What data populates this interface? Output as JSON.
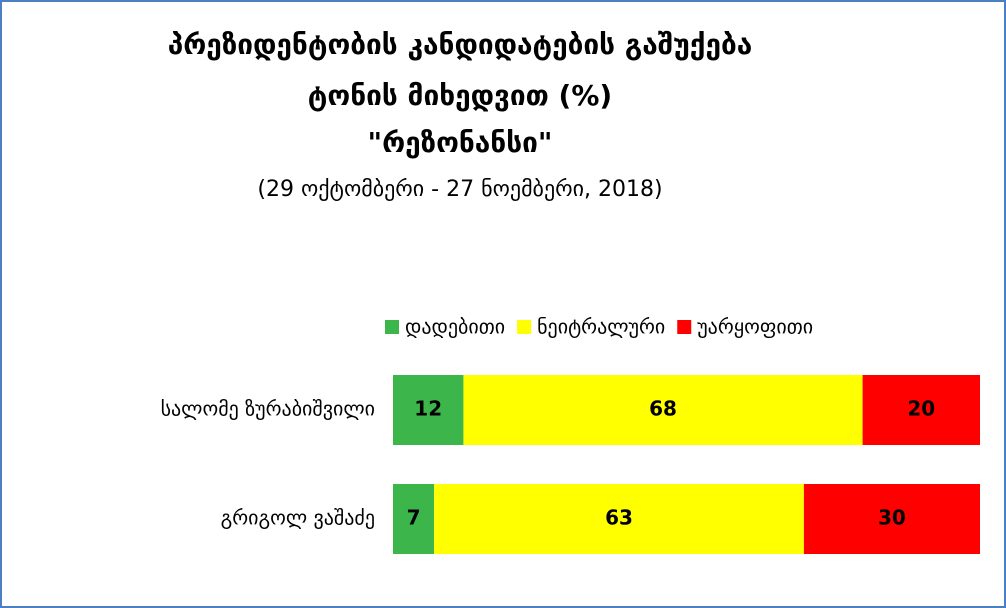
{
  "chart_data": {
    "type": "stacked-bar-horizontal",
    "title": [
      "პრეზიდენტობის კანდიდატების გაშუქება",
      "ტონის მიხედვით (%)",
      "\"რეზონანსი\""
    ],
    "subtitle": "(29 ოქტომბერი - 27 ნოემბერი, 2018)",
    "categories": [
      "სალომე ზურაბიშვილი",
      "გრიგოლ ვაშაძე"
    ],
    "series": [
      {
        "name": "დადებითი",
        "color": "#3cb64b",
        "values": [
          12,
          7
        ]
      },
      {
        "name": "ნეიტრალური",
        "color": "#ffff00",
        "values": [
          68,
          63
        ]
      },
      {
        "name": "უარყოფითი",
        "color": "#ff0000",
        "values": [
          20,
          30
        ]
      }
    ],
    "xlim": [
      0,
      100
    ],
    "legend": "top-right"
  }
}
